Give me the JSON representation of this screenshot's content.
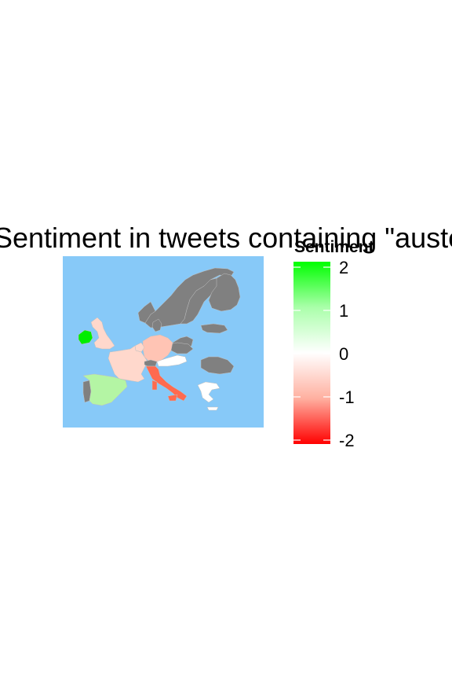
{
  "title": "Sentiment in tweets containing \"austerity+greece\"",
  "legend": {
    "title": "Sentiment",
    "ticks": [
      "2",
      "1",
      "0",
      "-1",
      "-2"
    ],
    "range": [
      -2,
      2
    ],
    "colors": {
      "low": "#ff0000",
      "mid": "#ffffff",
      "high": "#00ff00"
    }
  },
  "map": {
    "background_color": "#87c9f8",
    "no_data_color": "#808080",
    "countries": [
      {
        "name": "Ireland",
        "sentiment": 2.0,
        "color": "#00ee00"
      },
      {
        "name": "Spain",
        "sentiment": 0.7,
        "color": "#b4f5a4"
      },
      {
        "name": "United Kingdom",
        "sentiment": -0.4,
        "color": "#ffd8cc"
      },
      {
        "name": "France",
        "sentiment": -0.4,
        "color": "#ffd8cc"
      },
      {
        "name": "Belgium",
        "sentiment": -0.4,
        "color": "#ffd8cc"
      },
      {
        "name": "Germany",
        "sentiment": -0.6,
        "color": "#ffc4b4"
      },
      {
        "name": "Italy",
        "sentiment": -1.4,
        "color": "#ff6a4f"
      },
      {
        "name": "Austria",
        "sentiment": 0.0,
        "color": "#ffffff"
      },
      {
        "name": "Greece",
        "sentiment": 0.0,
        "color": "#ffffff"
      },
      {
        "name": "Portugal",
        "sentiment": null,
        "color": "#808080"
      },
      {
        "name": "Norway",
        "sentiment": null,
        "color": "#808080"
      },
      {
        "name": "Sweden",
        "sentiment": null,
        "color": "#808080"
      },
      {
        "name": "Finland",
        "sentiment": null,
        "color": "#808080"
      },
      {
        "name": "Denmark",
        "sentiment": null,
        "color": "#808080"
      },
      {
        "name": "Poland",
        "sentiment": null,
        "color": "#808080"
      },
      {
        "name": "Czech Republic",
        "sentiment": null,
        "color": "#808080"
      },
      {
        "name": "Switzerland",
        "sentiment": null,
        "color": "#808080"
      },
      {
        "name": "Romania",
        "sentiment": null,
        "color": "#808080"
      },
      {
        "name": "Lithuania",
        "sentiment": null,
        "color": "#808080"
      }
    ]
  }
}
